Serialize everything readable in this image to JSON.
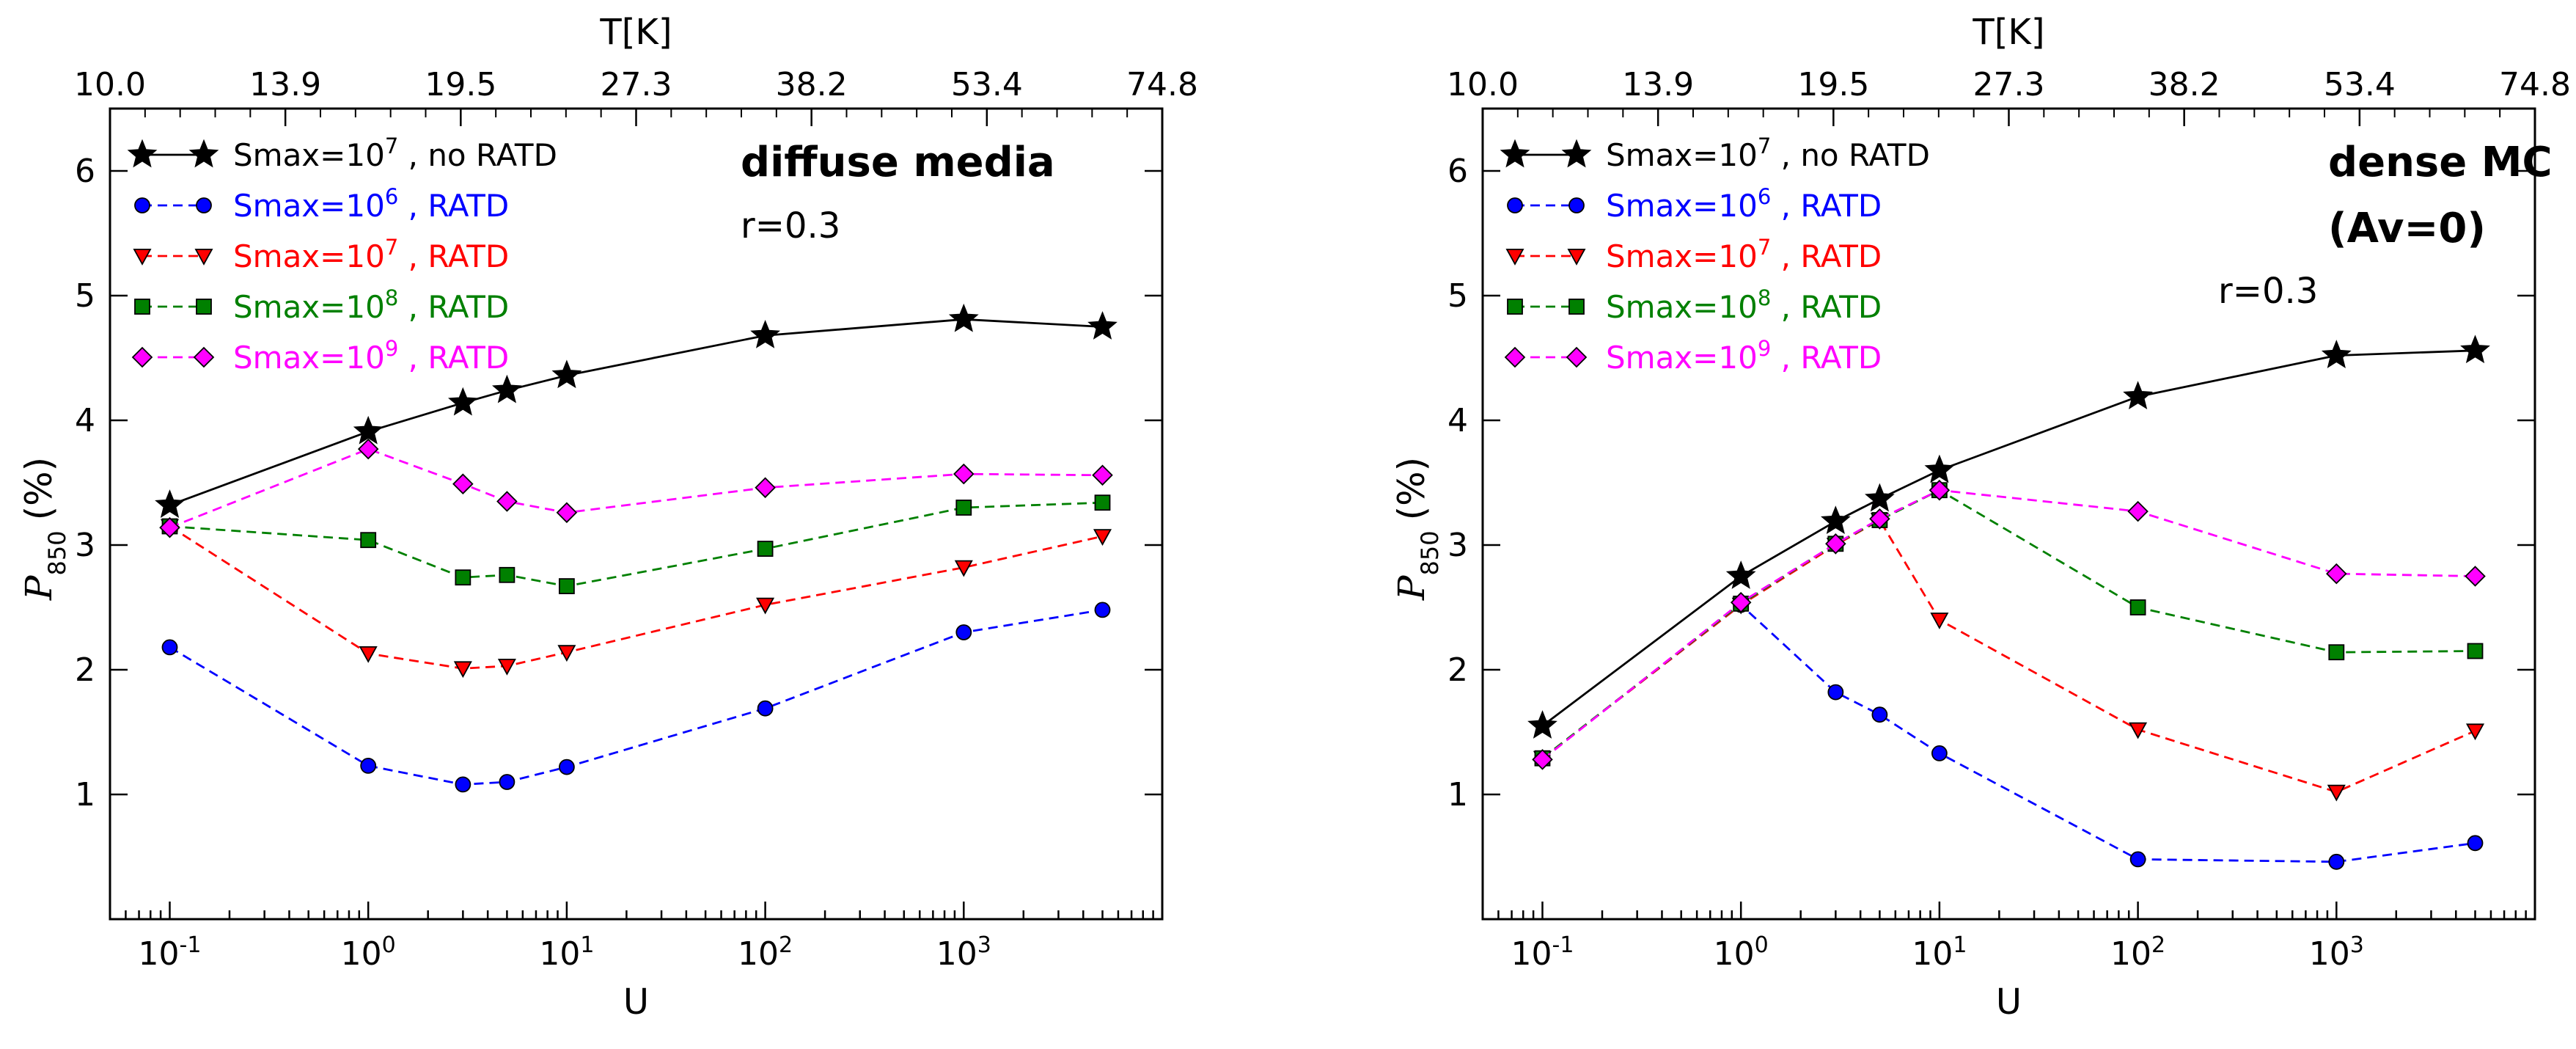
{
  "chart_data": [
    {
      "type": "line",
      "panel": "left",
      "xscale": "log",
      "xlim": [
        0.05,
        10000
      ],
      "ylim": [
        0,
        6.5
      ],
      "xlabel": "U",
      "ylabel": "(%)",
      "ylabel_symbol": "P",
      "ylabel_subscript": "850",
      "top_axis_label": "T[K]",
      "top_ticks": [
        "10.0",
        "13.9",
        "19.5",
        "27.3",
        "38.2",
        "53.4",
        "74.8"
      ],
      "x_tick_labels": [
        {
          "value": 0.1,
          "base": "10",
          "exp": "-1"
        },
        {
          "value": 1,
          "base": "10",
          "exp": "0"
        },
        {
          "value": 10,
          "base": "10",
          "exp": "1"
        },
        {
          "value": 100,
          "base": "10",
          "exp": "2"
        },
        {
          "value": 1000,
          "base": "10",
          "exp": "3"
        }
      ],
      "y_ticks": [
        1,
        2,
        3,
        4,
        5,
        6
      ],
      "annotations": [
        "diffuse media",
        "r=0.3"
      ],
      "x": [
        0.1,
        1,
        3,
        5,
        10,
        100,
        1000,
        5000
      ],
      "series": [
        {
          "name_base": "Smax=10",
          "name_exp": "7",
          "name_tail": " , no RATD",
          "color": "#000000",
          "marker": "star",
          "dash": "solid",
          "values": [
            3.32,
            3.91,
            4.14,
            4.24,
            4.36,
            4.68,
            4.81,
            4.75
          ]
        },
        {
          "name_base": "Smax=10",
          "name_exp": "6",
          "name_tail": " , RATD",
          "color": "#0000ff",
          "marker": "circle",
          "dash": "dashed",
          "values": [
            2.18,
            1.23,
            1.08,
            1.1,
            1.22,
            1.69,
            2.3,
            2.48
          ]
        },
        {
          "name_base": "Smax=10",
          "name_exp": "7",
          "name_tail": " , RATD",
          "color": "#ff0000",
          "marker": "triangle-down",
          "dash": "dashed",
          "values": [
            3.15,
            2.13,
            2.01,
            2.03,
            2.14,
            2.52,
            2.82,
            3.07
          ]
        },
        {
          "name_base": "Smax=10",
          "name_exp": "8",
          "name_tail": " , RATD",
          "color": "#008000",
          "marker": "square",
          "dash": "dashed",
          "values": [
            3.15,
            3.04,
            2.74,
            2.76,
            2.67,
            2.97,
            3.3,
            3.34
          ]
        },
        {
          "name_base": "Smax=10",
          "name_exp": "9",
          "name_tail": " , RATD",
          "color": "#ff00ff",
          "marker": "diamond",
          "dash": "dashed",
          "values": [
            3.14,
            3.77,
            3.49,
            3.35,
            3.26,
            3.46,
            3.57,
            3.56
          ]
        }
      ]
    },
    {
      "type": "line",
      "panel": "right",
      "xscale": "log",
      "xlim": [
        0.05,
        10000
      ],
      "ylim": [
        0,
        6.5
      ],
      "xlabel": "U",
      "ylabel": "(%)",
      "ylabel_symbol": "P",
      "ylabel_subscript": "850",
      "top_axis_label": "T[K]",
      "top_ticks": [
        "10.0",
        "13.9",
        "19.5",
        "27.3",
        "38.2",
        "53.4",
        "74.8"
      ],
      "x_tick_labels": [
        {
          "value": 0.1,
          "base": "10",
          "exp": "-1"
        },
        {
          "value": 1,
          "base": "10",
          "exp": "0"
        },
        {
          "value": 10,
          "base": "10",
          "exp": "1"
        },
        {
          "value": 100,
          "base": "10",
          "exp": "2"
        },
        {
          "value": 1000,
          "base": "10",
          "exp": "3"
        }
      ],
      "y_ticks": [
        1,
        2,
        3,
        4,
        5,
        6
      ],
      "annotations": [
        "dense MC",
        "(Av=0)",
        "r=0.3"
      ],
      "x": [
        0.1,
        1,
        3,
        5,
        10,
        100,
        1000,
        5000
      ],
      "series": [
        {
          "name_base": "Smax=10",
          "name_exp": "7",
          "name_tail": " , no RATD",
          "color": "#000000",
          "marker": "star",
          "dash": "solid",
          "values": [
            1.55,
            2.75,
            3.19,
            3.37,
            3.6,
            4.19,
            4.52,
            4.56
          ]
        },
        {
          "name_base": "Smax=10",
          "name_exp": "6",
          "name_tail": " , RATD",
          "color": "#0000ff",
          "marker": "circle",
          "dash": "dashed",
          "values": [
            1.29,
            2.52,
            1.82,
            1.64,
            1.33,
            0.48,
            0.46,
            0.61
          ]
        },
        {
          "name_base": "Smax=10",
          "name_exp": "7",
          "name_tail": " , RATD",
          "color": "#ff0000",
          "marker": "triangle-down",
          "dash": "dashed",
          "values": [
            1.29,
            2.52,
            3.0,
            3.2,
            2.4,
            1.52,
            1.02,
            1.51
          ]
        },
        {
          "name_base": "Smax=10",
          "name_exp": "8",
          "name_tail": " , RATD",
          "color": "#008000",
          "marker": "square",
          "dash": "dashed",
          "values": [
            1.29,
            2.53,
            3.01,
            3.2,
            3.44,
            2.5,
            2.14,
            2.15
          ]
        },
        {
          "name_base": "Smax=10",
          "name_exp": "9",
          "name_tail": " , RATD",
          "color": "#ff00ff",
          "marker": "diamond",
          "dash": "dashed",
          "values": [
            1.28,
            2.54,
            3.01,
            3.21,
            3.44,
            3.27,
            2.77,
            2.75
          ]
        }
      ]
    }
  ]
}
